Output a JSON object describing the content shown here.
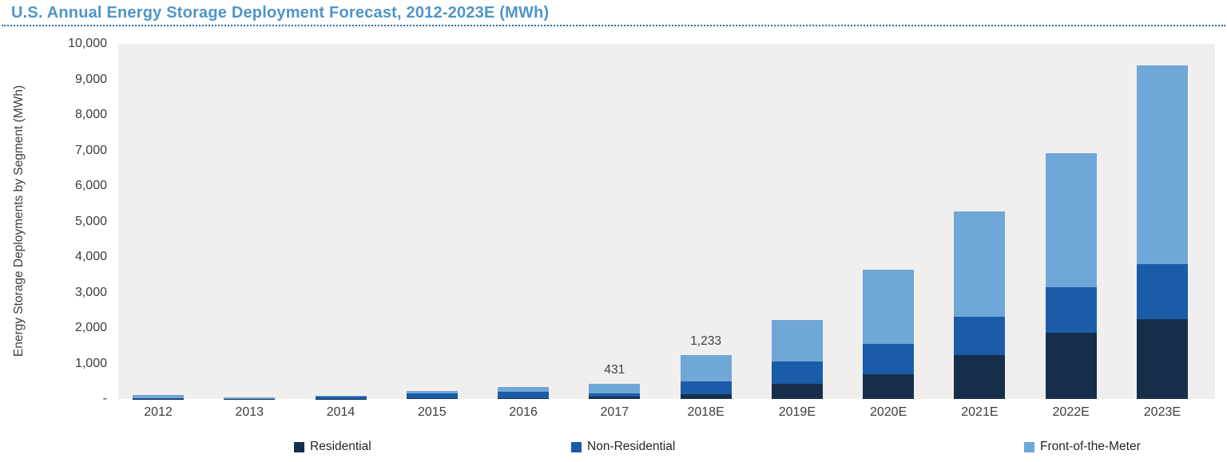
{
  "title": "U.S. Annual Energy Storage Deployment Forecast, 2012-2023E (MWh)",
  "y_axis_title": "Energy Storage Deployments by Segment (MWh)",
  "colors": {
    "title_blue": "#4f95c8",
    "rule_blue": "#2c6ca6",
    "plot_background": "#f0efee",
    "axis_text": "#3d3d3d",
    "residential": "#172e4b",
    "non_residential": "#1b5ca8",
    "front_of_the_meter": "#6fa7d9"
  },
  "chart_data": {
    "type": "bar",
    "stacked": true,
    "unit": "MWh",
    "title": "U.S. Annual Energy Storage Deployment Forecast, 2012-2023E (MWh)",
    "xlabel": "",
    "ylabel": "Energy Storage Deployments by Segment (MWh)",
    "ylim": [
      0,
      10000
    ],
    "grid": false,
    "legend_position": "bottom",
    "categories": [
      "2012",
      "2013",
      "2014",
      "2015",
      "2016",
      "2017",
      "2018E",
      "2019E",
      "2020E",
      "2021E",
      "2022E",
      "2023E"
    ],
    "series": [
      {
        "name": "Residential",
        "color_key": "residential",
        "values": [
          2,
          2,
          6,
          15,
          30,
          74,
          140,
          420,
          690,
          1230,
          1870,
          2250
        ]
      },
      {
        "name": "Non-Residential",
        "color_key": "non_residential",
        "values": [
          25,
          8,
          60,
          140,
          170,
          91,
          350,
          630,
          870,
          1090,
          1280,
          1550
        ]
      },
      {
        "name": "Front-of-the-Meter",
        "color_key": "front_of_the_meter",
        "values": [
          95,
          40,
          24,
          71,
          136,
          266,
          743,
          1180,
          2090,
          2960,
          3770,
          5600
        ]
      }
    ],
    "totals": [
      122,
      50,
      90,
      226,
      336,
      431,
      1233,
      2230,
      3650,
      5280,
      6920,
      9400
    ],
    "bar_labels": [
      "",
      "",
      "",
      "",
      "",
      "431",
      "1,233",
      "",
      "",
      "",
      "",
      ""
    ],
    "y_ticks": [
      {
        "label": "10,000",
        "value": 10000
      },
      {
        "label": "9,000",
        "value": 9000
      },
      {
        "label": "8,000",
        "value": 8000
      },
      {
        "label": "7,000",
        "value": 7000
      },
      {
        "label": "6,000",
        "value": 6000
      },
      {
        "label": "5,000",
        "value": 5000
      },
      {
        "label": "4,000",
        "value": 4000
      },
      {
        "label": "3,000",
        "value": 3000
      },
      {
        "label": "2,000",
        "value": 2000
      },
      {
        "label": "1,000",
        "value": 1000
      },
      {
        "label": "-",
        "value": 0
      }
    ]
  }
}
